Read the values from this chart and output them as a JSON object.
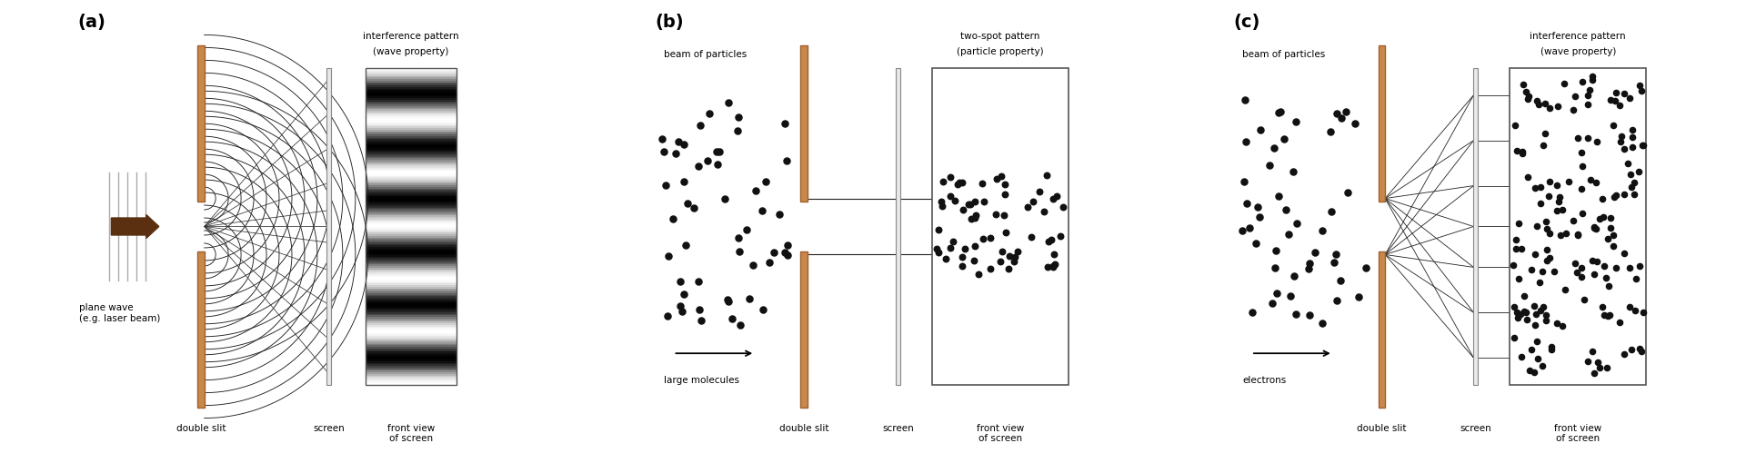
{
  "bg_color": "#ffffff",
  "text_color": "#000000",
  "slit_color": "#c8884a",
  "slit_edge_color": "#a06030",
  "screen_color": "#cccccc",
  "wavefront_color": "#222222",
  "dot_color": "#111111",
  "line_color": "#222222",
  "arrow_color": "#5a3010",
  "panel_labels": [
    "(a)",
    "(b)",
    "(c)"
  ],
  "title_a1": "interference pattern",
  "title_a2": "(wave property)",
  "title_b1": "two-spot pattern",
  "title_b2": "(particle property)",
  "title_c1": "interference pattern",
  "title_c2": "(wave property)",
  "label_plane_wave": "plane wave\n(e.g. laser beam)",
  "label_double_slit": "double slit",
  "label_screen": "screen",
  "label_front_view": "front view\nof screen",
  "label_beam": "beam of particles",
  "label_molecules": "large molecules",
  "label_electrons": "electrons"
}
